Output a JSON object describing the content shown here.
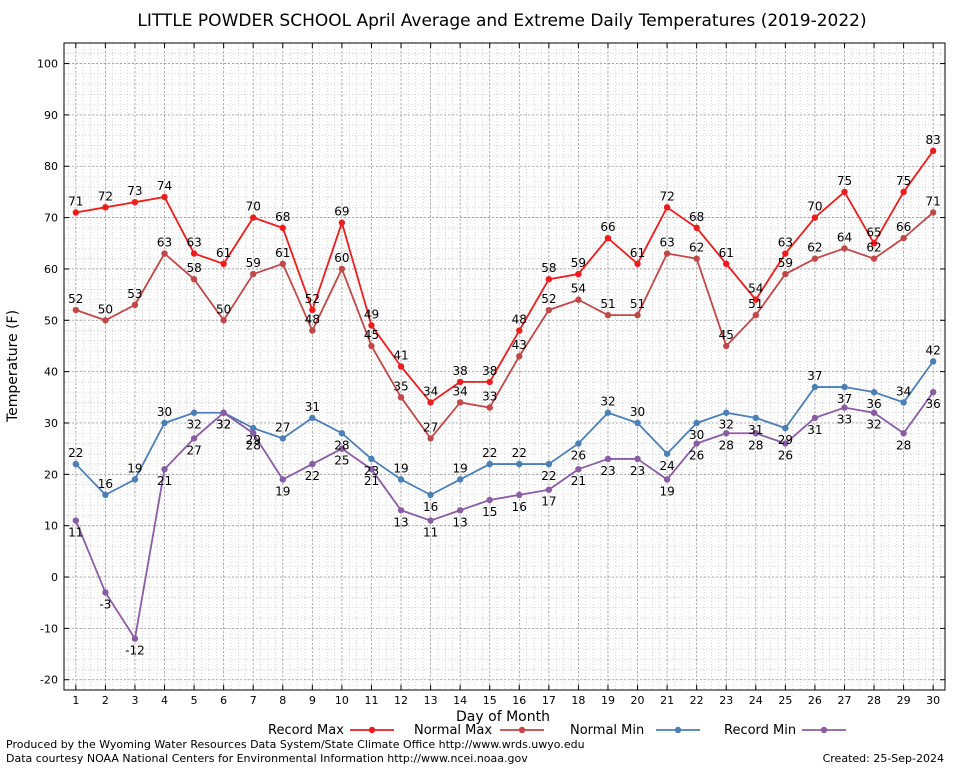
{
  "chart_data": {
    "type": "line",
    "title": "LITTLE POWDER SCHOOL April Average and Extreme Daily Temperatures (2019-2022)",
    "xlabel": "Day of Month",
    "ylabel": "Temperature (F)",
    "x": [
      1,
      2,
      3,
      4,
      5,
      6,
      7,
      8,
      9,
      10,
      11,
      12,
      13,
      14,
      15,
      16,
      17,
      18,
      19,
      20,
      21,
      22,
      23,
      24,
      25,
      26,
      27,
      28,
      29,
      30
    ],
    "xlim": [
      0.6,
      30.4
    ],
    "ylim": [
      -22,
      104
    ],
    "yticks": [
      -20,
      -10,
      0,
      10,
      20,
      30,
      40,
      50,
      60,
      70,
      80,
      90,
      100
    ],
    "grid": true,
    "legend_position": "bottom",
    "series": [
      {
        "name": "Record Max",
        "color": "#ee1c1c",
        "values": [
          71,
          72,
          73,
          74,
          63,
          61,
          70,
          68,
          52,
          69,
          49,
          41,
          34,
          38,
          38,
          48,
          58,
          59,
          66,
          61,
          72,
          68,
          61,
          54,
          63,
          70,
          75,
          65,
          75,
          83
        ]
      },
      {
        "name": "Normal Max",
        "color": "#c04848",
        "values": [
          52,
          50,
          53,
          63,
          58,
          50,
          59,
          61,
          48,
          60,
          45,
          35,
          27,
          34,
          33,
          43,
          52,
          54,
          51,
          51,
          63,
          62,
          45,
          51,
          59,
          62,
          64,
          62,
          66,
          71
        ]
      },
      {
        "name": "Normal Min",
        "color": "#4a7fb8",
        "values": [
          22,
          16,
          19,
          30,
          32,
          32,
          29,
          27,
          31,
          28,
          23,
          19,
          16,
          19,
          22,
          22,
          22,
          26,
          32,
          30,
          24,
          30,
          32,
          31,
          29,
          37,
          37,
          36,
          34,
          42
        ]
      },
      {
        "name": "Record Min",
        "color": "#8a5ca5",
        "values": [
          11,
          -3,
          -12,
          21,
          27,
          32,
          28,
          19,
          22,
          25,
          21,
          13,
          11,
          13,
          15,
          16,
          17,
          21,
          23,
          23,
          19,
          26,
          28,
          28,
          26,
          31,
          33,
          32,
          28,
          36
        ]
      }
    ],
    "label_offsets": {
      "Record Max": "above",
      "Normal Max": "above",
      "Normal Min": "mixed",
      "Record Min": "below"
    }
  },
  "footer": {
    "left_line1": "Produced by the Wyoming Water Resources Data System/State Climate Office http://www.wrds.uwyo.edu",
    "left_line2": "Data courtesy NOAA National Centers for Environmental Information http://www.ncei.noaa.gov",
    "created": "Created: 25-Sep-2024"
  }
}
